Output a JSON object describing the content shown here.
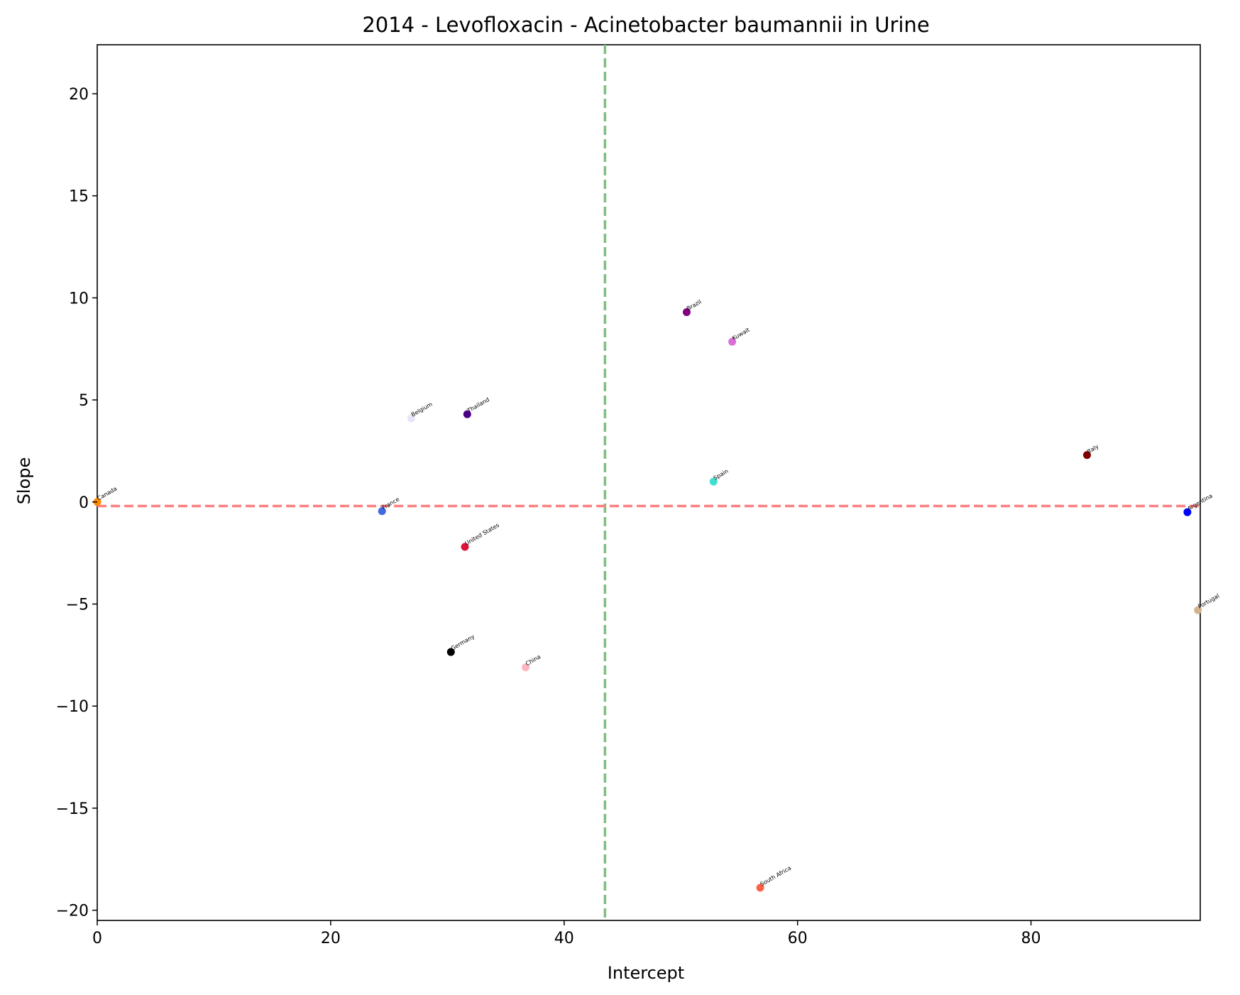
{
  "chart_data": {
    "type": "scatter",
    "title": "2014 - Levofloxacin - Acinetobacter baumannii in Urine",
    "xlabel": "Intercept",
    "ylabel": "Slope",
    "xlim": [
      0,
      94.5
    ],
    "ylim": [
      -20.5,
      22.4
    ],
    "xticks": [
      0,
      20,
      40,
      60,
      80
    ],
    "yticks": [
      -20,
      -15,
      -10,
      -5,
      0,
      5,
      10,
      15,
      20
    ],
    "xtick_labels": [
      "0",
      "20",
      "40",
      "60",
      "80"
    ],
    "ytick_labels": [
      "−20",
      "−15",
      "−10",
      "−5",
      "0",
      "5",
      "10",
      "15",
      "20"
    ],
    "grid": false,
    "reference_lines": {
      "vertical": {
        "x": 43.5,
        "color": "#7fbf7f",
        "style": "dashed"
      },
      "horizontal": {
        "y": -0.2,
        "color": "#ff7f7f",
        "style": "dashed"
      }
    },
    "points": [
      {
        "label": "Canada",
        "x": 0.0,
        "y": 0.0,
        "color": "#ff8c00"
      },
      {
        "label": "France",
        "x": 24.4,
        "y": -0.45,
        "color": "#4169e1"
      },
      {
        "label": "Belgium",
        "x": 26.9,
        "y": 4.1,
        "color": "#e6e6fa"
      },
      {
        "label": "Thailand",
        "x": 31.7,
        "y": 4.3,
        "color": "#4b0082"
      },
      {
        "label": "United States",
        "x": 31.5,
        "y": -2.2,
        "color": "#dc143c"
      },
      {
        "label": "Germany",
        "x": 30.3,
        "y": -7.35,
        "color": "#000000"
      },
      {
        "label": "China",
        "x": 36.7,
        "y": -8.1,
        "color": "#ffb6c1"
      },
      {
        "label": "Brazil",
        "x": 50.5,
        "y": 9.3,
        "color": "#800080"
      },
      {
        "label": "Kuwait",
        "x": 54.4,
        "y": 7.85,
        "color": "#da70d6"
      },
      {
        "label": "Spain",
        "x": 52.8,
        "y": 1.0,
        "color": "#40e0d0"
      },
      {
        "label": "South Africa",
        "x": 56.8,
        "y": -18.9,
        "color": "#ff6347"
      },
      {
        "label": "Italy",
        "x": 84.8,
        "y": 2.3,
        "color": "#800000"
      },
      {
        "label": "Argentina",
        "x": 93.4,
        "y": -0.5,
        "color": "#0000ff"
      },
      {
        "label": "Portugal",
        "x": 94.3,
        "y": -5.3,
        "color": "#d2b48c"
      }
    ]
  }
}
